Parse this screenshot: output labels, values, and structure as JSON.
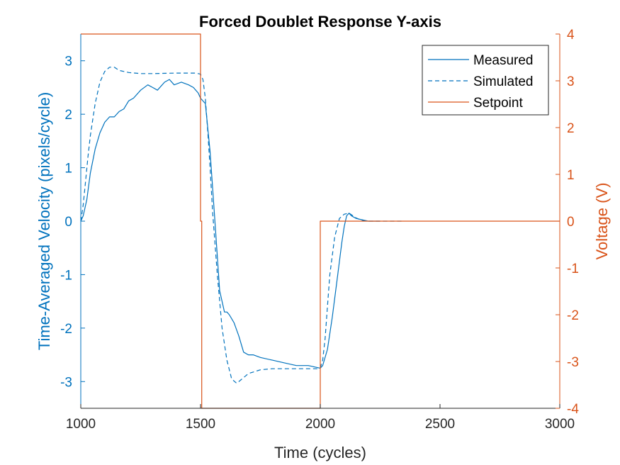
{
  "chart_data": {
    "type": "line",
    "title": "Forced Doublet Response Y-axis",
    "xlabel": "Time (cycles)",
    "ylabel_left": "Time-Averaged Velocity (pixels/cycle)",
    "ylabel_right": "Voltage (V)",
    "xlim": [
      1000,
      3000
    ],
    "ylim_left": [
      -3.5,
      3.5
    ],
    "ylim_right": [
      -4,
      4
    ],
    "xticks": [
      "1000",
      "1500",
      "2000",
      "2500",
      "3000"
    ],
    "yticks_left": [
      "-3",
      "-2",
      "-1",
      "0",
      "1",
      "2",
      "3"
    ],
    "yticks_right": [
      "-4",
      "-3",
      "-2",
      "-1",
      "0",
      "1",
      "2",
      "3",
      "4"
    ],
    "grid": false,
    "legend_position": "top-right",
    "colors": {
      "left_axis": "#0072BD",
      "right_axis": "#D95319",
      "measured": "#0072BD",
      "simulated": "#0072BD",
      "setpoint": "#D95319"
    },
    "series": [
      {
        "name": "Measured",
        "axis": "left",
        "style": "solid",
        "x": [
          1000,
          1010,
          1025,
          1040,
          1060,
          1080,
          1100,
          1120,
          1140,
          1160,
          1180,
          1200,
          1220,
          1250,
          1280,
          1300,
          1320,
          1350,
          1370,
          1390,
          1420,
          1450,
          1470,
          1490,
          1500,
          1520,
          1540,
          1560,
          1580,
          1600,
          1610,
          1620,
          1640,
          1660,
          1680,
          1700,
          1720,
          1750,
          1800,
          1850,
          1900,
          1950,
          2000,
          2010,
          2030,
          2050,
          2070,
          2090,
          2100,
          2110,
          2120,
          2130,
          2150,
          2200,
          2250
        ],
        "y": [
          0.0,
          0.1,
          0.4,
          0.9,
          1.35,
          1.65,
          1.85,
          1.95,
          1.95,
          2.05,
          2.1,
          2.25,
          2.3,
          2.45,
          2.55,
          2.5,
          2.45,
          2.6,
          2.65,
          2.55,
          2.6,
          2.55,
          2.5,
          2.4,
          2.3,
          2.2,
          1.3,
          0.0,
          -1.3,
          -1.7,
          -1.7,
          -1.75,
          -1.9,
          -2.15,
          -2.45,
          -2.5,
          -2.5,
          -2.55,
          -2.6,
          -2.65,
          -2.7,
          -2.7,
          -2.75,
          -2.7,
          -2.4,
          -1.8,
          -1.1,
          -0.4,
          -0.1,
          0.1,
          0.15,
          0.1,
          0.05,
          0.0,
          0.0
        ]
      },
      {
        "name": "Simulated",
        "axis": "left",
        "style": "dashed",
        "x": [
          1000,
          1010,
          1020,
          1030,
          1040,
          1060,
          1080,
          1100,
          1120,
          1140,
          1160,
          1200,
          1250,
          1300,
          1400,
          1480,
          1500,
          1510,
          1520,
          1530,
          1540,
          1550,
          1570,
          1590,
          1610,
          1630,
          1650,
          1660,
          1700,
          1750,
          1800,
          1900,
          1990,
          2000,
          2010,
          2020,
          2030,
          2040,
          2060,
          2080,
          2100,
          2110,
          2120,
          2130,
          2150,
          2170,
          2200,
          2250,
          2350
        ],
        "y": [
          0.0,
          0.3,
          0.75,
          1.2,
          1.6,
          2.2,
          2.6,
          2.8,
          2.88,
          2.88,
          2.82,
          2.78,
          2.76,
          2.76,
          2.77,
          2.77,
          2.75,
          2.65,
          2.3,
          1.7,
          1.0,
          0.2,
          -1.0,
          -2.0,
          -2.6,
          -2.95,
          -3.03,
          -3.0,
          -2.85,
          -2.78,
          -2.76,
          -2.76,
          -2.76,
          -2.74,
          -2.6,
          -2.2,
          -1.6,
          -1.0,
          -0.3,
          0.05,
          0.13,
          0.14,
          0.15,
          0.12,
          0.06,
          0.02,
          0.0,
          0.0,
          0.0
        ]
      },
      {
        "name": "Setpoint",
        "axis": "right",
        "style": "solid",
        "x": [
          1000,
          1500,
          1500,
          1505,
          1505,
          1510,
          1510,
          2000,
          2000,
          2005,
          2005,
          3000
        ],
        "y": [
          4,
          4,
          0,
          0,
          -4,
          -4,
          -4,
          -4,
          0,
          0,
          0,
          0
        ]
      }
    ]
  }
}
